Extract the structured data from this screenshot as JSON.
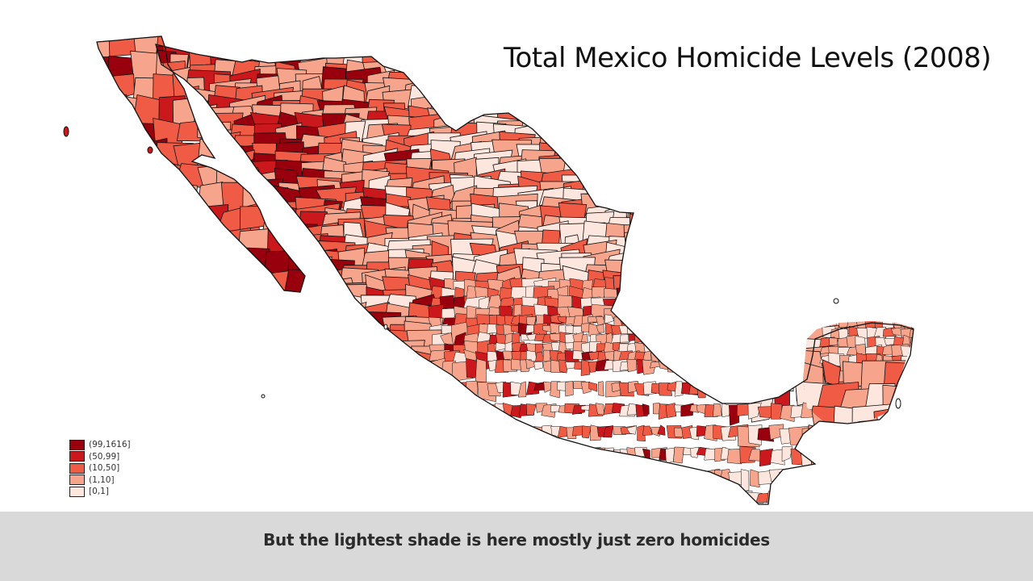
{
  "title": "Total Mexico Homicide Levels (2008)",
  "caption": "But the lightest shade is here mostly just zero homicides",
  "legend": [
    {
      "label": "(99,1616]",
      "color": "#99000d"
    },
    {
      "label": "(50,99]",
      "color": "#cb181d"
    },
    {
      "label": "(10,50]",
      "color": "#ef5b45"
    },
    {
      "label": "(1,10]",
      "color": "#f6a58c"
    },
    {
      "label": "[0,1]",
      "color": "#fde6dd"
    }
  ],
  "colors": {
    "background": "#ffffff",
    "caption_bar": "#d9d9d9",
    "border": "#111111"
  }
}
